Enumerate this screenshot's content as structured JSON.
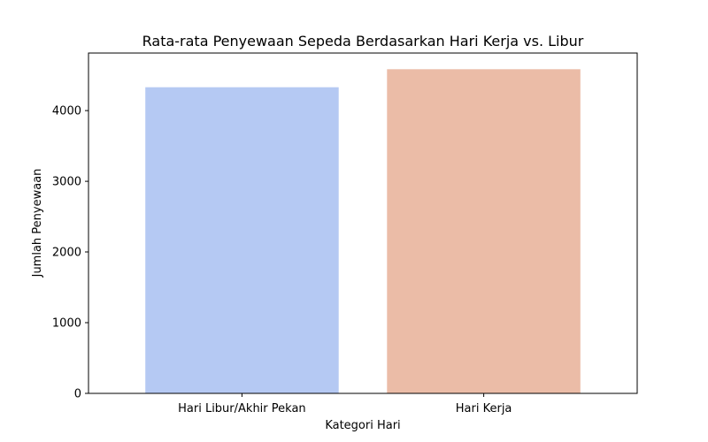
{
  "chart_data": {
    "type": "bar",
    "title": "Rata-rata Penyewaan Sepeda Berdasarkan Hari Kerja vs. Libur",
    "xlabel": "Kategori Hari",
    "ylabel": "Jumlah Penyewaan",
    "categories": [
      "Hari Libur/Akhir Pekan",
      "Hari Kerja"
    ],
    "values": [
      4330,
      4585
    ],
    "colors": [
      "#b5c9f3",
      "#ebbca7"
    ],
    "ylim": [
      0,
      4814
    ],
    "yticks": [
      0,
      1000,
      2000,
      3000,
      4000
    ],
    "grid": false,
    "legend": "none"
  }
}
